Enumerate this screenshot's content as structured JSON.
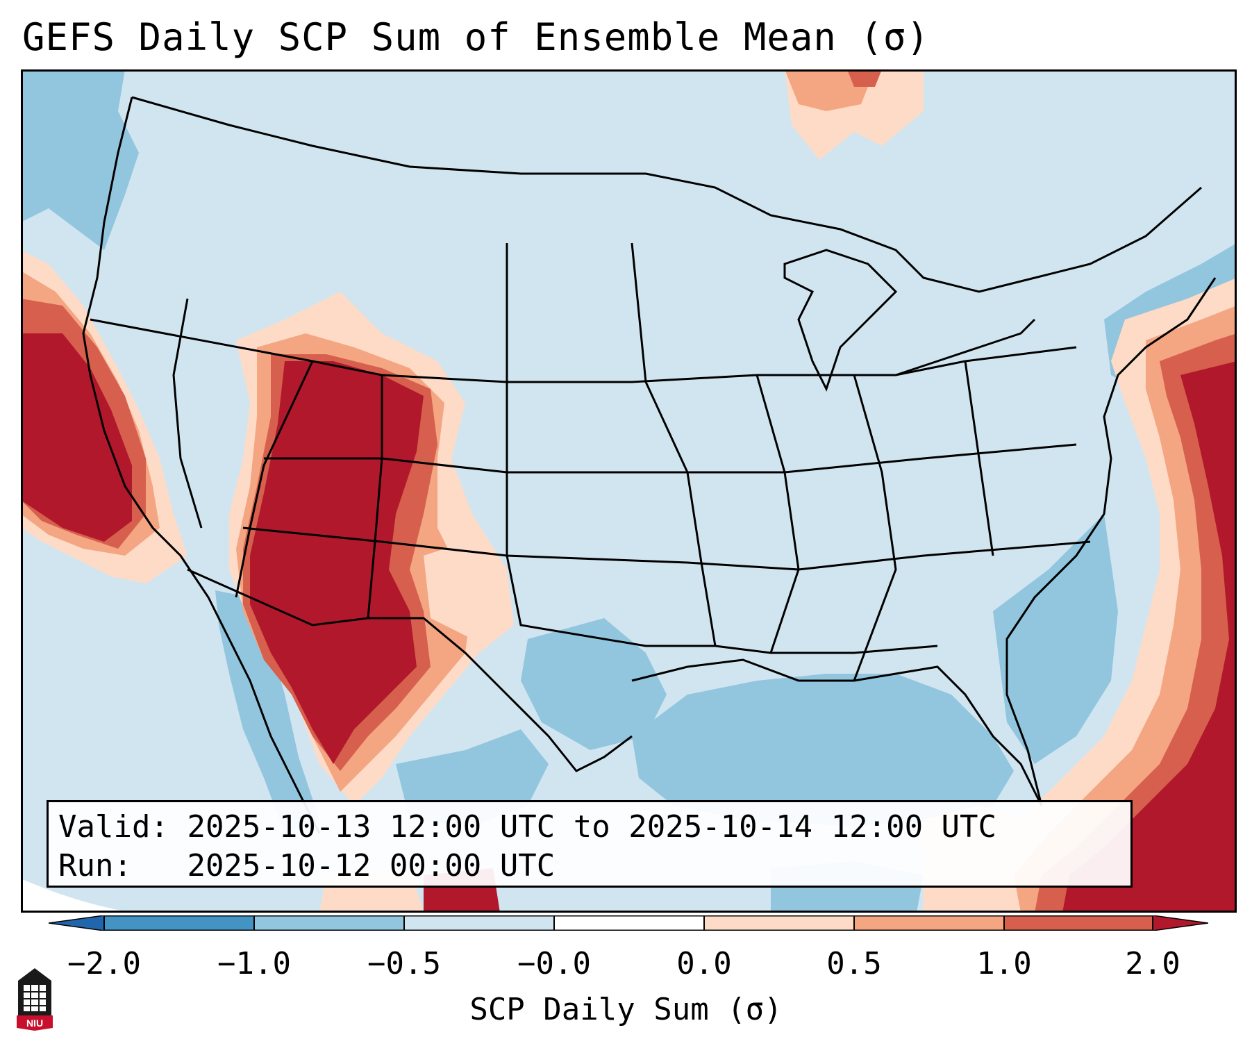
{
  "title": "GEFS Daily SCP Sum of Ensemble Mean (σ)",
  "info": {
    "valid_label": "Valid:",
    "valid_value": "2025-10-13 12:00 UTC to 2025-10-14 12:00 UTC",
    "run_label": "Run:",
    "run_value": "2025-10-12 00:00 UTC"
  },
  "colorbar": {
    "label": "SCP Daily Sum (σ)",
    "ticks": [
      "−2.0",
      "−1.0",
      "−0.5",
      "−0.0",
      "0.0",
      "0.5",
      "1.0",
      "2.0"
    ],
    "colors": {
      "lt_neg2": "#2166ac",
      "neg2_neg1": "#4393c3",
      "neg1_neg05": "#92c5de",
      "neg05_0": "#d1e5f0",
      "zero_05": "#fddbc7",
      "pos05_1": "#f4a582",
      "pos1_2": "#d6604d",
      "gt_2": "#b2182b"
    }
  },
  "logo": {
    "text": "NIU"
  }
}
